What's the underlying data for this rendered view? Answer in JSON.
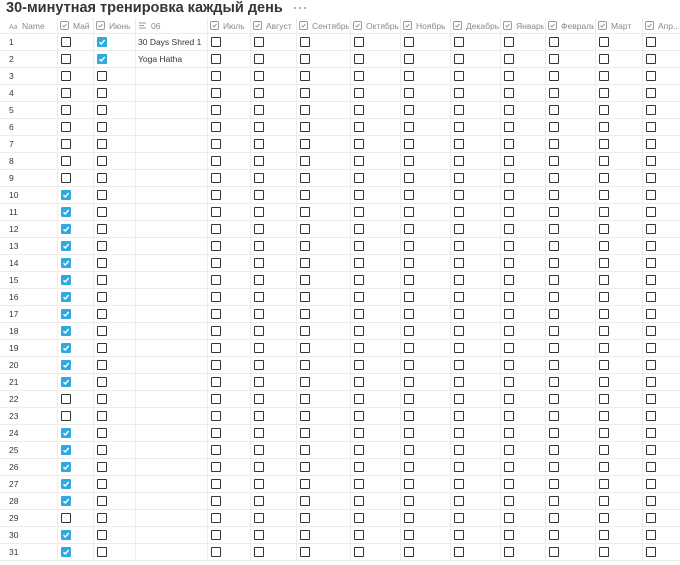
{
  "header": {
    "title": "30-минутная тренировка каждый день"
  },
  "table": {
    "columns": [
      "Name",
      "Май",
      "Июнь",
      "06",
      "Июль",
      "Август",
      "Сентябрь",
      "Октябрь",
      "Ноябрь",
      "Декабрь",
      "Январь",
      "Февраль",
      "Март",
      "Апр..."
    ],
    "rows": [
      [
        1,
        false,
        true,
        "30 Days Shred 1",
        false,
        false,
        false,
        false,
        false,
        false,
        false,
        false,
        false,
        false
      ],
      [
        2,
        false,
        true,
        "Yoga Hatha",
        false,
        false,
        false,
        false,
        false,
        false,
        false,
        false,
        false,
        false
      ],
      [
        3,
        false,
        false,
        null,
        false,
        false,
        false,
        false,
        false,
        false,
        false,
        false,
        false,
        false
      ],
      [
        4,
        false,
        false,
        null,
        false,
        false,
        false,
        false,
        false,
        false,
        false,
        false,
        false,
        false
      ],
      [
        5,
        false,
        false,
        null,
        false,
        false,
        false,
        false,
        false,
        false,
        false,
        false,
        false,
        false
      ],
      [
        6,
        false,
        false,
        null,
        false,
        false,
        false,
        false,
        false,
        false,
        false,
        false,
        false,
        false
      ],
      [
        7,
        false,
        false,
        null,
        false,
        false,
        false,
        false,
        false,
        false,
        false,
        false,
        false,
        false
      ],
      [
        8,
        false,
        false,
        null,
        false,
        false,
        false,
        false,
        false,
        false,
        false,
        false,
        false,
        false
      ],
      [
        9,
        false,
        false,
        null,
        false,
        false,
        false,
        false,
        false,
        false,
        false,
        false,
        false,
        false
      ],
      [
        10,
        true,
        false,
        null,
        false,
        false,
        false,
        false,
        false,
        false,
        false,
        false,
        false,
        false
      ],
      [
        11,
        true,
        false,
        null,
        false,
        false,
        false,
        false,
        false,
        false,
        false,
        false,
        false,
        false
      ],
      [
        12,
        true,
        false,
        null,
        false,
        false,
        false,
        false,
        false,
        false,
        false,
        false,
        false,
        false
      ],
      [
        13,
        true,
        false,
        null,
        false,
        false,
        false,
        false,
        false,
        false,
        false,
        false,
        false,
        false
      ],
      [
        14,
        true,
        false,
        null,
        false,
        false,
        false,
        false,
        false,
        false,
        false,
        false,
        false,
        false
      ],
      [
        15,
        true,
        false,
        null,
        false,
        false,
        false,
        false,
        false,
        false,
        false,
        false,
        false,
        false
      ],
      [
        16,
        true,
        false,
        null,
        false,
        false,
        false,
        false,
        false,
        false,
        false,
        false,
        false,
        false
      ],
      [
        17,
        true,
        false,
        null,
        false,
        false,
        false,
        false,
        false,
        false,
        false,
        false,
        false,
        false
      ],
      [
        18,
        true,
        false,
        null,
        false,
        false,
        false,
        false,
        false,
        false,
        false,
        false,
        false,
        false
      ],
      [
        19,
        true,
        false,
        null,
        false,
        false,
        false,
        false,
        false,
        false,
        false,
        false,
        false,
        false
      ],
      [
        20,
        true,
        false,
        null,
        false,
        false,
        false,
        false,
        false,
        false,
        false,
        false,
        false,
        false
      ],
      [
        21,
        true,
        false,
        null,
        false,
        false,
        false,
        false,
        false,
        false,
        false,
        false,
        false,
        false
      ],
      [
        22,
        false,
        false,
        null,
        false,
        false,
        false,
        false,
        false,
        false,
        false,
        false,
        false,
        false
      ],
      [
        23,
        false,
        false,
        null,
        false,
        false,
        false,
        false,
        false,
        false,
        false,
        false,
        false,
        false
      ],
      [
        24,
        true,
        false,
        null,
        false,
        false,
        false,
        false,
        false,
        false,
        false,
        false,
        false,
        false
      ],
      [
        25,
        true,
        false,
        null,
        false,
        false,
        false,
        false,
        false,
        false,
        false,
        false,
        false,
        false
      ],
      [
        26,
        true,
        false,
        null,
        false,
        false,
        false,
        false,
        false,
        false,
        false,
        false,
        false,
        false
      ],
      [
        27,
        true,
        false,
        null,
        false,
        false,
        false,
        false,
        false,
        false,
        false,
        false,
        false,
        false
      ],
      [
        28,
        true,
        false,
        null,
        false,
        false,
        false,
        false,
        false,
        false,
        false,
        false,
        false,
        false
      ],
      [
        29,
        false,
        false,
        null,
        false,
        false,
        false,
        false,
        false,
        false,
        false,
        false,
        false,
        false
      ],
      [
        30,
        true,
        false,
        null,
        false,
        false,
        false,
        false,
        false,
        false,
        false,
        false,
        false,
        false
      ],
      [
        31,
        true,
        false,
        null,
        false,
        false,
        false,
        false,
        false,
        false,
        false,
        false,
        false,
        false
      ]
    ]
  }
}
